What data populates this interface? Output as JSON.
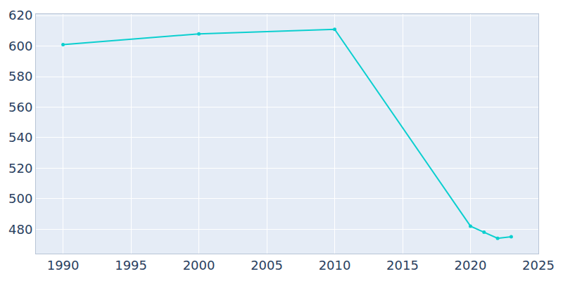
{
  "chart_data": {
    "type": "line",
    "x": [
      1990,
      2000,
      2010,
      2020,
      2021,
      2022,
      2023
    ],
    "values": [
      601,
      608,
      611,
      482,
      478,
      474,
      475
    ],
    "color": "#0bcfcf",
    "marker": "circle",
    "xlim": [
      1988,
      2025
    ],
    "xticks": [
      1990,
      1995,
      2000,
      2005,
      2010,
      2015,
      2020,
      2025
    ],
    "ylim": [
      464,
      621
    ],
    "yticks": [
      480,
      500,
      520,
      540,
      560,
      580,
      600,
      620
    ],
    "grid": true
  }
}
